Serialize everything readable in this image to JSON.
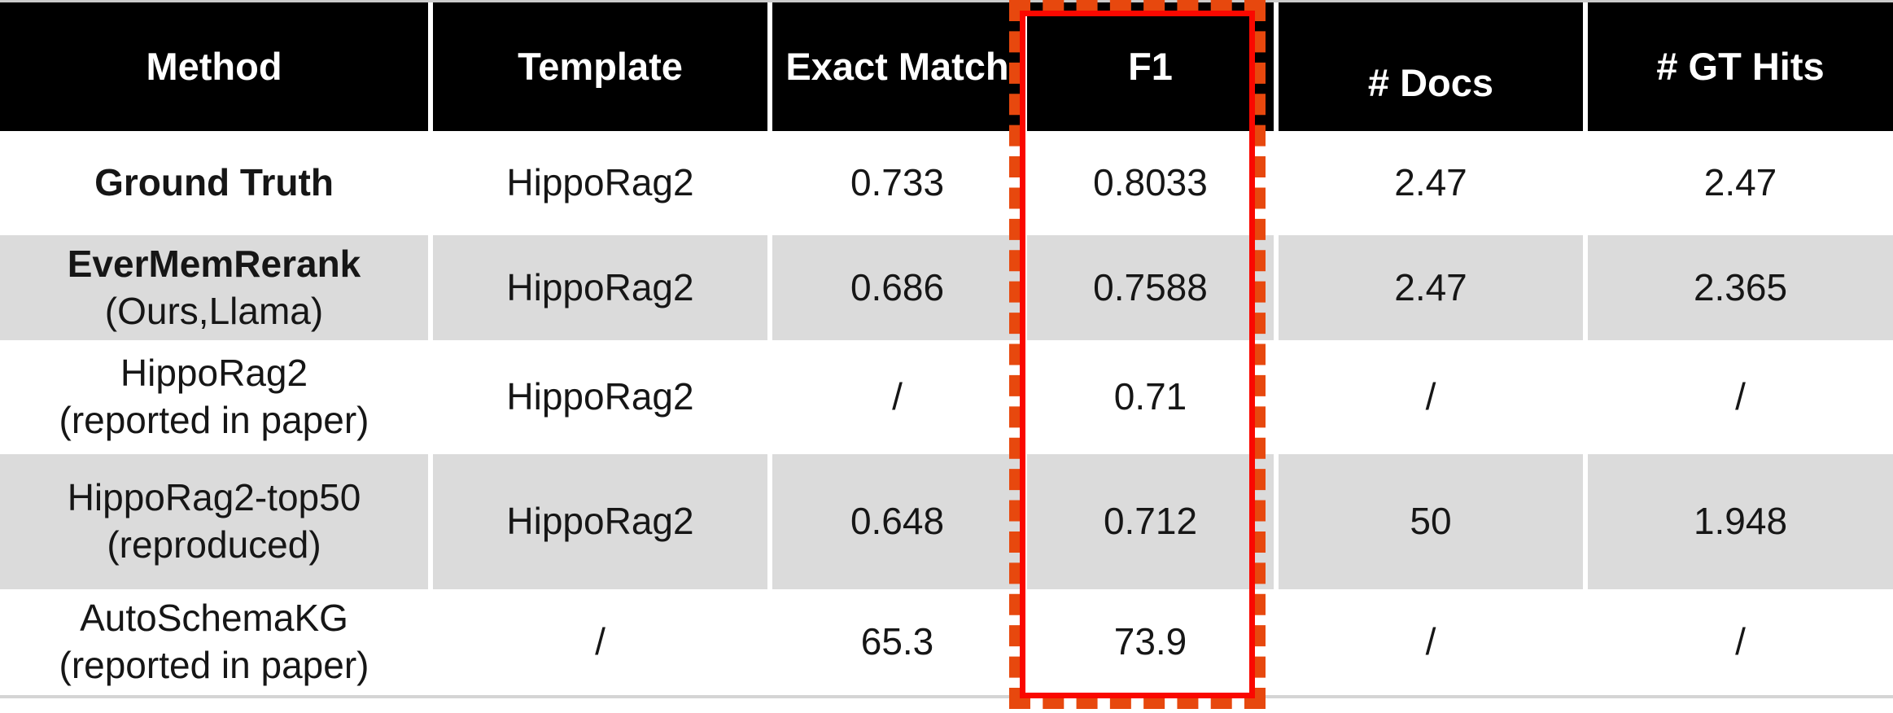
{
  "chart_data": {
    "type": "table",
    "title": "",
    "columns": [
      "Method",
      "Template",
      "Exact Match",
      "F1",
      "# Docs",
      "# GT Hits"
    ],
    "rows": [
      {
        "method": [
          "Ground Truth"
        ],
        "values": [
          "HippoRag2",
          "0.733",
          "0.8033",
          "2.47",
          "2.47"
        ]
      },
      {
        "method": [
          "EverMemRerank",
          "(Ours,Llama)"
        ],
        "values": [
          "HippoRag2",
          "0.686",
          "0.7588",
          "2.47",
          "2.365"
        ]
      },
      {
        "method": [
          "HippoRag2",
          "(reported in paper)"
        ],
        "values": [
          "HippoRag2",
          "/",
          "0.71",
          "/",
          "/"
        ]
      },
      {
        "method": [
          "HippoRag2-top50",
          "(reproduced)"
        ],
        "values": [
          "HippoRag2",
          "0.648",
          "0.712",
          "50",
          "1.948"
        ]
      },
      {
        "method": [
          "AutoSchemaKG",
          "(reported in paper)"
        ],
        "values": [
          "/",
          "65.3",
          "73.9",
          "/",
          "/"
        ]
      }
    ],
    "highlighted_column": "F1",
    "layout": {
      "header_style": "black background, bold white text",
      "row_striping": "white / light gray alternating"
    }
  },
  "styles": {
    "header_bg": "#000000",
    "header_text": "#ffffff",
    "stripe_row_bg": "#dbdbdb",
    "white_row_bg": "#ffffff",
    "body_text": "#161616",
    "highlight_dash_color": "#e7480e",
    "highlight_line_color": "#fa0800",
    "table_top_border": "#cbcbcb",
    "table_bottom_border": "#d4d4d4"
  }
}
